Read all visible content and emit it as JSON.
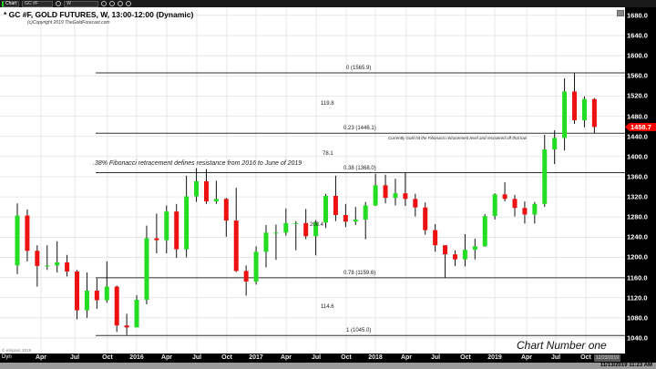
{
  "toolbar": {
    "chart_label": "Chart",
    "symbol": "GC #F",
    "interval": "W"
  },
  "header": {
    "title": "* GC #F, GOLD FUTURES, W, 13:00-12:00 (Dynamic)",
    "copyright": "(c)Copyright 2019 TheGoldForecast.com"
  },
  "watermark": "© eSignal, 2019",
  "chart_caption": "Chart Number one",
  "timestamp": "11/13/2019 11:23 AM",
  "x_axis": {
    "mode_label": "Dyn",
    "end_date": "12/23/2019"
  },
  "colors": {
    "up": "#22dd22",
    "down": "#ee1111",
    "wick": "#111111",
    "price_tag": "#ff0000",
    "fib_line": "#333333"
  },
  "chart_data": {
    "type": "candlestick",
    "title": "* GC #F, GOLD FUTURES, W, 13:00-12:00 (Dynamic)",
    "ylim": [
      1020,
      1680
    ],
    "y_ticks": [
      1040,
      1080,
      1120,
      1160,
      1200,
      1240,
      1280,
      1320,
      1360,
      1400,
      1440,
      1480,
      1520,
      1560,
      1600,
      1640,
      1680
    ],
    "x_ticks": [
      "Apr",
      "Jul",
      "Oct",
      "2016",
      "Apr",
      "Jul",
      "Oct",
      "2017",
      "Apr",
      "Jul",
      "Oct",
      "2018",
      "Apr",
      "Jul",
      "Oct",
      "2019",
      "Apr",
      "Jul",
      "Oct"
    ],
    "last_price": "1458.7",
    "grid": true,
    "candles": [
      [
        "2015-01",
        1184,
        1307,
        1167,
        1283
      ],
      [
        "2015-02",
        1283,
        1295,
        1192,
        1213
      ],
      [
        "2015-03",
        1213,
        1224,
        1142,
        1183
      ],
      [
        "2015-04",
        1183,
        1224,
        1175,
        1184
      ],
      [
        "2015-05",
        1184,
        1232,
        1170,
        1190
      ],
      [
        "2015-06",
        1190,
        1205,
        1162,
        1172
      ],
      [
        "2015-07",
        1172,
        1175,
        1077,
        1095
      ],
      [
        "2015-08",
        1095,
        1170,
        1080,
        1134
      ],
      [
        "2015-09",
        1134,
        1158,
        1098,
        1115
      ],
      [
        "2015-10",
        1115,
        1192,
        1110,
        1142
      ],
      [
        "2015-11",
        1142,
        1144,
        1052,
        1065
      ],
      [
        "2015-12",
        1065,
        1088,
        1046,
        1061
      ],
      [
        "2016-01",
        1061,
        1125,
        1063,
        1116
      ],
      [
        "2016-02",
        1116,
        1263,
        1107,
        1238
      ],
      [
        "2016-03",
        1238,
        1287,
        1208,
        1234
      ],
      [
        "2016-04",
        1234,
        1303,
        1208,
        1291
      ],
      [
        "2016-05",
        1291,
        1306,
        1199,
        1216
      ],
      [
        "2016-06",
        1216,
        1362,
        1200,
        1321
      ],
      [
        "2016-07",
        1321,
        1377,
        1310,
        1351
      ],
      [
        "2016-08",
        1351,
        1375,
        1306,
        1311
      ],
      [
        "2016-09",
        1311,
        1352,
        1306,
        1316
      ],
      [
        "2016-10",
        1316,
        1318,
        1241,
        1273
      ],
      [
        "2016-11",
        1273,
        1338,
        1171,
        1173
      ],
      [
        "2016-12",
        1173,
        1184,
        1124,
        1152
      ],
      [
        "2017-01",
        1152,
        1222,
        1146,
        1211
      ],
      [
        "2017-02",
        1211,
        1264,
        1180,
        1249
      ],
      [
        "2017-03",
        1249,
        1265,
        1195,
        1249
      ],
      [
        "2017-04",
        1249,
        1297,
        1243,
        1268
      ],
      [
        "2017-05",
        1268,
        1272,
        1214,
        1268
      ],
      [
        "2017-06",
        1268,
        1296,
        1236,
        1242
      ],
      [
        "2017-07",
        1242,
        1274,
        1204,
        1269
      ],
      [
        "2017-08",
        1269,
        1326,
        1258,
        1322
      ],
      [
        "2017-09",
        1322,
        1362,
        1272,
        1284
      ],
      [
        "2017-10",
        1284,
        1306,
        1260,
        1271
      ],
      [
        "2017-11",
        1271,
        1300,
        1264,
        1275
      ],
      [
        "2017-12",
        1275,
        1310,
        1236,
        1303
      ],
      [
        "2018-01",
        1303,
        1366,
        1302,
        1343
      ],
      [
        "2018-02",
        1343,
        1364,
        1307,
        1318
      ],
      [
        "2018-03",
        1318,
        1356,
        1303,
        1327
      ],
      [
        "2018-04",
        1327,
        1369,
        1302,
        1316
      ],
      [
        "2018-05",
        1316,
        1326,
        1281,
        1299
      ],
      [
        "2018-06",
        1299,
        1309,
        1245,
        1254
      ],
      [
        "2018-07",
        1254,
        1266,
        1211,
        1224
      ],
      [
        "2018-08",
        1224,
        1224,
        1160,
        1206
      ],
      [
        "2018-09",
        1206,
        1214,
        1183,
        1196
      ],
      [
        "2018-10",
        1196,
        1246,
        1182,
        1215
      ],
      [
        "2018-11",
        1215,
        1237,
        1196,
        1222
      ],
      [
        "2018-12",
        1222,
        1286,
        1221,
        1282
      ],
      [
        "2019-01",
        1282,
        1327,
        1275,
        1325
      ],
      [
        "2019-02",
        1325,
        1349,
        1311,
        1316
      ],
      [
        "2019-03",
        1316,
        1324,
        1281,
        1298
      ],
      [
        "2019-04",
        1298,
        1311,
        1267,
        1285
      ],
      [
        "2019-05",
        1285,
        1310,
        1267,
        1306
      ],
      [
        "2019-06",
        1306,
        1443,
        1300,
        1414
      ],
      [
        "2019-07",
        1414,
        1452,
        1385,
        1437
      ],
      [
        "2019-08",
        1437,
        1555,
        1412,
        1529
      ],
      [
        "2019-09",
        1529,
        1566,
        1465,
        1472
      ],
      [
        "2019-10",
        1472,
        1519,
        1458,
        1514
      ],
      [
        "2019-11",
        1514,
        1516,
        1446,
        1458.7
      ]
    ],
    "fibonacci": [
      {
        "label": "0 (1565.9)",
        "price": 1565.9
      },
      {
        "label": "0.23 (1446.1)",
        "price": 1446.1
      },
      {
        "label": "0.38 (1368.0)",
        "price": 1368.0
      },
      {
        "label": "0.78 (1159.6)",
        "price": 1159.6
      },
      {
        "label": "1 (1045.0)",
        "price": 1045.0
      }
    ],
    "fib_differences": [
      "119.8",
      "78.1",
      "208.4",
      "114.6"
    ],
    "annotations": [
      ".38% Fibonacci retracement  defines resistance from 2016 to June of 2019",
      "Currently Gold hit the Fibonacci retracement level and recovered off that low"
    ]
  }
}
